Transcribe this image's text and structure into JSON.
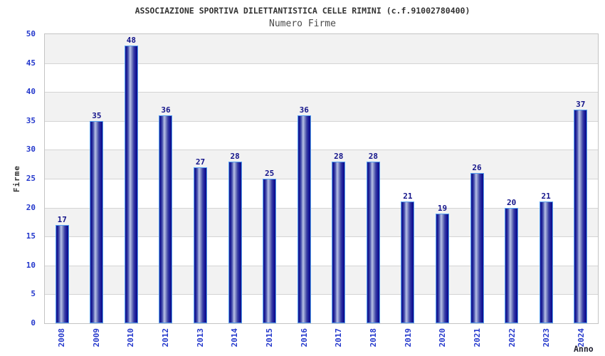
{
  "chart_data": {
    "type": "bar",
    "title": "ASSOCIAZIONE SPORTIVA DILETTANTISTICA CELLE RIMINI (c.f.91002780400)",
    "subtitle": "Numero Firme",
    "xlabel": "Anno",
    "ylabel": "Firme",
    "categories": [
      "2008",
      "2009",
      "2010",
      "2012",
      "2013",
      "2014",
      "2015",
      "2016",
      "2017",
      "2018",
      "2019",
      "2020",
      "2021",
      "2022",
      "2023",
      "2024"
    ],
    "values": [
      17,
      35,
      48,
      36,
      27,
      28,
      25,
      36,
      28,
      28,
      21,
      19,
      26,
      20,
      21,
      37
    ],
    "ylim": [
      0,
      50
    ],
    "ytick_step": 5,
    "yticks": [
      0,
      5,
      10,
      15,
      20,
      25,
      30,
      35,
      40,
      45,
      50
    ],
    "value_labels_shown": true,
    "legend": null,
    "grid": "alternating horizontal bands every 5 units, gray line at each tick",
    "colors": {
      "bar_edge": "#56a0f0",
      "bar_dark": "#12128c",
      "bar_light": "#aeb6e2",
      "axis_tick_text": "#2438cc",
      "value_label_text": "#14148a",
      "title_text": "#333333",
      "subtitle_text": "#4a4a4a",
      "band_gray": "#f2f2f2",
      "band_white": "#ffffff",
      "grid_line": "#d4d4d4",
      "plot_border": "#c4c4c4"
    }
  }
}
